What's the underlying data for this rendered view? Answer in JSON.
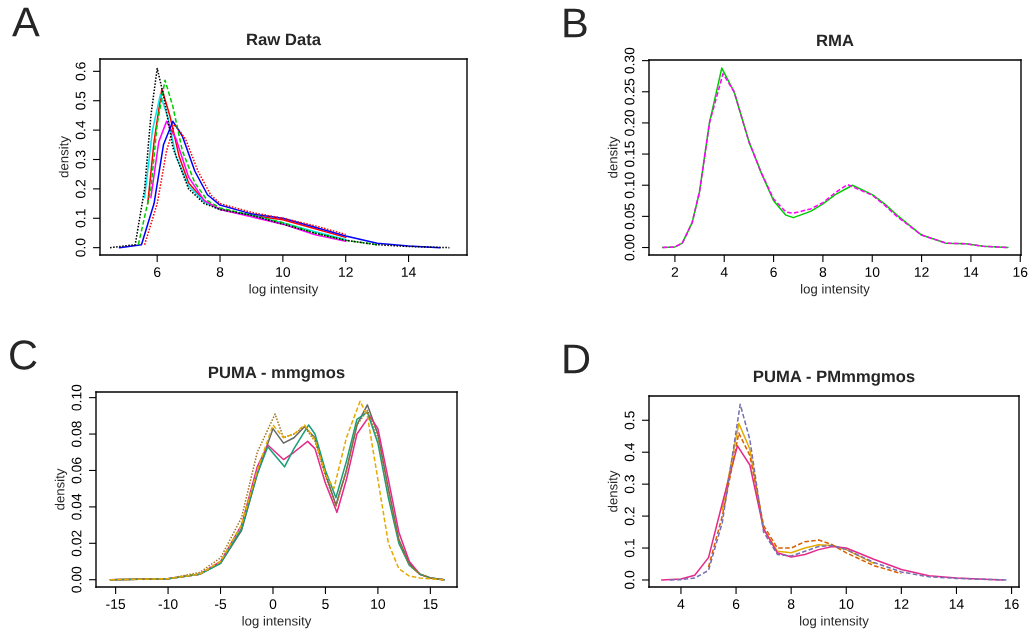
{
  "chart_data": [
    {
      "type": "line",
      "title": "Raw Data",
      "xlabel": "log intensity",
      "ylabel": "density",
      "annotations": [
        "A"
      ],
      "xlim": [
        4.18,
        15.86
      ],
      "ylim": [
        -0.025,
        0.642
      ],
      "xticks": [
        6,
        8,
        10,
        12,
        14
      ],
      "yticks": [
        {
          "value": 0,
          "label": "0.0"
        },
        0.1,
        0.2,
        0.3,
        0.4,
        0.5,
        0.6
      ],
      "series": [
        {
          "color": "#ff0000",
          "line_style": "solid",
          "x": [
            5.7,
            5.9,
            6.15,
            6.4,
            6.7,
            7.0,
            7.5,
            8.0,
            9.0,
            10.0,
            11.0,
            12.0
          ],
          "values": [
            0.15,
            0.36,
            0.54,
            0.45,
            0.31,
            0.22,
            0.16,
            0.13,
            0.11,
            0.095,
            0.065,
            0.035
          ]
        },
        {
          "color": "#00e5ee",
          "line_style": "solid",
          "x": [
            5.6,
            5.85,
            6.1,
            6.35,
            6.6,
            7.0,
            7.5,
            8.0,
            9.0,
            10.0,
            11.0,
            12.0
          ],
          "values": [
            0.17,
            0.4,
            0.52,
            0.44,
            0.31,
            0.21,
            0.155,
            0.13,
            0.11,
            0.085,
            0.055,
            0.028
          ]
        },
        {
          "color": "#ff00ff",
          "line_style": "solid",
          "x": [
            5.8,
            6.05,
            6.3,
            6.6,
            7.0,
            7.5,
            8.0,
            9.0,
            10.0,
            11.0,
            12.0
          ],
          "values": [
            0.17,
            0.36,
            0.43,
            0.37,
            0.24,
            0.16,
            0.13,
            0.105,
            0.08,
            0.045,
            0.022
          ]
        },
        {
          "color": "#0000ff",
          "line_style": "solid",
          "x": [
            4.8,
            5.5,
            5.9,
            6.2,
            6.5,
            6.8,
            7.2,
            7.6,
            8.0,
            9.0,
            10.0,
            11.0,
            12.0,
            13.0,
            14.0,
            15.0
          ],
          "values": [
            0,
            0.01,
            0.15,
            0.35,
            0.43,
            0.38,
            0.26,
            0.18,
            0.145,
            0.115,
            0.1,
            0.07,
            0.04,
            0.015,
            0.006,
            0
          ]
        },
        {
          "color": "#00cd00",
          "line_style": "dashed",
          "x": [
            5.4,
            5.8,
            6.0,
            6.25,
            6.5,
            6.8,
            7.2,
            7.6,
            8.0,
            9.0,
            10.0,
            11.0,
            12.0,
            13.0
          ],
          "values": [
            0.01,
            0.2,
            0.42,
            0.57,
            0.48,
            0.33,
            0.22,
            0.16,
            0.135,
            0.11,
            0.085,
            0.05,
            0.025,
            0.01
          ]
        },
        {
          "color": "#ff0000",
          "line_style": "dotted",
          "x": [
            5.6,
            6.0,
            6.3,
            6.55,
            6.9,
            7.3,
            7.7,
            8.0,
            9.0,
            10.0,
            11.0,
            12.0
          ],
          "values": [
            0.01,
            0.15,
            0.33,
            0.42,
            0.37,
            0.26,
            0.18,
            0.15,
            0.12,
            0.1,
            0.075,
            0.045
          ]
        },
        {
          "color": "#000000",
          "line_style": "dotted",
          "x": [
            4.5,
            5.3,
            5.6,
            5.8,
            6.0,
            6.2,
            6.5,
            7.0,
            7.5,
            8.0,
            9.0,
            10.0,
            11.0,
            12.0,
            13.0,
            14.0,
            15.3
          ],
          "values": [
            0,
            0.01,
            0.2,
            0.45,
            0.61,
            0.52,
            0.34,
            0.2,
            0.15,
            0.13,
            0.11,
            0.08,
            0.05,
            0.025,
            0.01,
            0.004,
            0
          ]
        }
      ]
    },
    {
      "type": "line",
      "title": "RMA",
      "xlabel": "log intensity",
      "ylabel": "density",
      "annotations": [
        "B"
      ],
      "xlim": [
        0.95,
        16.03
      ],
      "ylim": [
        -0.012,
        0.301
      ],
      "xticks": [
        2,
        4,
        6,
        8,
        10,
        12,
        14,
        16
      ],
      "yticks": [
        {
          "value": 0,
          "label": "0.00"
        },
        0.05,
        {
          "value": 0.1,
          "label": "0.10"
        },
        0.15,
        {
          "value": 0.2,
          "label": "0.20"
        },
        0.25,
        {
          "value": 0.3,
          "label": "0.30"
        }
      ],
      "series": [
        {
          "color": "#00cd00",
          "line_style": "solid",
          "x": [
            1.5,
            2.0,
            2.3,
            2.7,
            3.0,
            3.4,
            3.9,
            4.4,
            5.0,
            5.5,
            6.0,
            6.5,
            6.8,
            7.5,
            8.0,
            8.5,
            9.2,
            10.0,
            10.5,
            11.0,
            12.0,
            13.0,
            13.8,
            14.5,
            15.5
          ],
          "values": [
            0,
            0.001,
            0.007,
            0.04,
            0.09,
            0.2,
            0.288,
            0.25,
            0.17,
            0.12,
            0.075,
            0.052,
            0.048,
            0.058,
            0.07,
            0.085,
            0.1,
            0.085,
            0.07,
            0.052,
            0.02,
            0.007,
            0.006,
            0.002,
            0
          ]
        },
        {
          "color": "#ff00ff",
          "line_style": "dashed",
          "x": [
            1.5,
            2.0,
            2.3,
            2.7,
            3.0,
            3.4,
            3.95,
            4.4,
            5.0,
            5.5,
            6.0,
            6.5,
            6.8,
            7.5,
            8.0,
            8.5,
            9.0,
            10.0,
            10.5,
            11.0,
            12.0,
            13.0,
            13.8,
            14.5,
            15.5
          ],
          "values": [
            0,
            0.001,
            0.007,
            0.04,
            0.09,
            0.2,
            0.279,
            0.25,
            0.17,
            0.12,
            0.078,
            0.057,
            0.055,
            0.062,
            0.072,
            0.088,
            0.101,
            0.084,
            0.068,
            0.05,
            0.02,
            0.007,
            0.006,
            0.002,
            0
          ]
        }
      ]
    },
    {
      "type": "line",
      "title": "PUMA - mmgmos",
      "xlabel": "log intensity",
      "ylabel": "density",
      "annotations": [
        "C"
      ],
      "xlim": [
        -16.87,
        17.54
      ],
      "ylim": [
        -0.004,
        0.1031
      ],
      "xticks": [
        -15,
        -10,
        -5,
        0,
        5,
        10,
        15
      ],
      "yticks": [
        {
          "value": 0,
          "label": "0.00"
        },
        0.02,
        0.04,
        0.06,
        0.08,
        {
          "value": 0.1,
          "label": "0.10"
        }
      ],
      "series": [
        {
          "color": "#666666",
          "line_style": "solid",
          "x": [
            -15.5,
            -10,
            -7,
            -5,
            -3,
            -1.5,
            0,
            1,
            2,
            3,
            4,
            5,
            6,
            7,
            8,
            9,
            10,
            11,
            12,
            13,
            14,
            15,
            16.3
          ],
          "values": [
            0,
            0.0005,
            0.003,
            0.009,
            0.027,
            0.058,
            0.083,
            0.075,
            0.078,
            0.084,
            0.078,
            0.058,
            0.041,
            0.06,
            0.085,
            0.096,
            0.08,
            0.05,
            0.022,
            0.009,
            0.003,
            0.001,
            0
          ]
        },
        {
          "color": "#e7298a",
          "line_style": "solid",
          "x": [
            -15.5,
            -10,
            -7,
            -5,
            -3,
            -1.5,
            -0.5,
            1,
            2,
            3.3,
            4,
            5,
            6.1,
            7,
            8,
            9.2,
            10,
            11,
            12,
            13,
            14,
            15,
            16.3
          ],
          "values": [
            0,
            0.0005,
            0.003,
            0.01,
            0.03,
            0.062,
            0.074,
            0.066,
            0.07,
            0.076,
            0.072,
            0.053,
            0.037,
            0.055,
            0.08,
            0.09,
            0.083,
            0.055,
            0.026,
            0.01,
            0.003,
            0.001,
            0
          ]
        },
        {
          "color": "#1b9e77",
          "line_style": "solid",
          "x": [
            -15.5,
            -10,
            -7,
            -5,
            -3,
            -1.5,
            -0.5,
            1.1,
            2,
            3.4,
            4,
            5,
            6,
            7,
            8,
            9,
            10,
            11,
            12,
            13,
            14,
            15,
            16.3
          ],
          "values": [
            0,
            0.0005,
            0.003,
            0.009,
            0.028,
            0.058,
            0.073,
            0.062,
            0.072,
            0.085,
            0.08,
            0.06,
            0.045,
            0.065,
            0.088,
            0.092,
            0.075,
            0.045,
            0.02,
            0.008,
            0.003,
            0.001,
            0
          ]
        },
        {
          "color": "#a6761d",
          "line_style": "dotted",
          "x": [
            -15.5,
            -10,
            -7,
            -5,
            -3,
            -1.5,
            0.2,
            1,
            2,
            3,
            4,
            5,
            6,
            7,
            8,
            9,
            10,
            11,
            12,
            13,
            14,
            15,
            16.3
          ],
          "values": [
            0,
            0.0005,
            0.004,
            0.012,
            0.034,
            0.07,
            0.091,
            0.078,
            0.08,
            0.084,
            0.076,
            0.057,
            0.04,
            0.06,
            0.085,
            0.093,
            0.078,
            0.048,
            0.021,
            0.008,
            0.003,
            0.001,
            0
          ]
        },
        {
          "color": "#e6ab02",
          "line_style": "dashed",
          "x": [
            -15.5,
            -10,
            -7,
            -5,
            -3,
            -1.5,
            0,
            1,
            2,
            3,
            4,
            5,
            5.8,
            7,
            8.3,
            9,
            10,
            11,
            12,
            13,
            14,
            15,
            16.3
          ],
          "values": [
            0,
            0.0005,
            0.003,
            0.01,
            0.03,
            0.06,
            0.085,
            0.078,
            0.08,
            0.085,
            0.077,
            0.058,
            0.05,
            0.078,
            0.098,
            0.09,
            0.055,
            0.02,
            0.006,
            0.002,
            0.001,
            0.0005,
            0
          ]
        }
      ]
    },
    {
      "type": "line",
      "title": "PUMA - PMmmgmos",
      "xlabel": "log intensity",
      "ylabel": "density",
      "annotations": [
        "D"
      ],
      "xlim": [
        2.84,
        16.27
      ],
      "ylim": [
        -0.022,
        0.576
      ],
      "xticks": [
        4,
        6,
        8,
        10,
        12,
        14,
        16
      ],
      "yticks": [
        {
          "value": 0,
          "label": "0.0"
        },
        0.1,
        0.2,
        0.3,
        0.4,
        0.5
      ],
      "series": [
        {
          "color": "#e6ab02",
          "line_style": "solid",
          "x": [
            5.5,
            6.1,
            6.5,
            7.0,
            7.5,
            8.0,
            8.5,
            9.0,
            9.5,
            10.0,
            11.0
          ],
          "values": [
            0.22,
            0.49,
            0.41,
            0.16,
            0.09,
            0.085,
            0.1,
            0.11,
            0.108,
            0.095,
            0.052
          ]
        },
        {
          "color": "#e7298a",
          "line_style": "solid",
          "x": [
            3.3,
            4.0,
            4.5,
            5.0,
            5.5,
            6.05,
            6.5,
            7.0,
            7.5,
            8.0,
            8.5,
            9.0,
            9.5,
            10.0,
            11.0,
            12.0,
            13.0,
            14.0,
            15.0,
            15.7
          ],
          "values": [
            0,
            0.003,
            0.015,
            0.07,
            0.24,
            0.42,
            0.36,
            0.16,
            0.085,
            0.072,
            0.08,
            0.095,
            0.105,
            0.1,
            0.065,
            0.033,
            0.013,
            0.006,
            0.002,
            0
          ]
        },
        {
          "color": "#d95f02",
          "line_style": "dashed",
          "x": [
            5.0,
            5.5,
            6.1,
            6.5,
            7.0,
            7.5,
            8.0,
            8.5,
            9.0,
            9.5,
            10.0,
            11.0,
            12.0
          ],
          "values": [
            0.04,
            0.2,
            0.46,
            0.39,
            0.17,
            0.1,
            0.1,
            0.12,
            0.125,
            0.11,
            0.085,
            0.045,
            0.02
          ]
        },
        {
          "color": "#7570b3",
          "line_style": "dashed",
          "x": [
            3.6,
            4.0,
            4.5,
            5.0,
            5.5,
            6.15,
            6.5,
            7.0,
            7.5,
            8.0,
            8.5,
            9.0,
            9.5,
            10.0,
            11.0,
            12.0,
            13.0,
            14.0,
            15.0,
            15.9
          ],
          "values": [
            0,
            0.001,
            0.006,
            0.03,
            0.18,
            0.55,
            0.44,
            0.15,
            0.08,
            0.075,
            0.09,
            0.105,
            0.108,
            0.095,
            0.055,
            0.025,
            0.01,
            0.005,
            0.002,
            0
          ]
        }
      ]
    }
  ]
}
